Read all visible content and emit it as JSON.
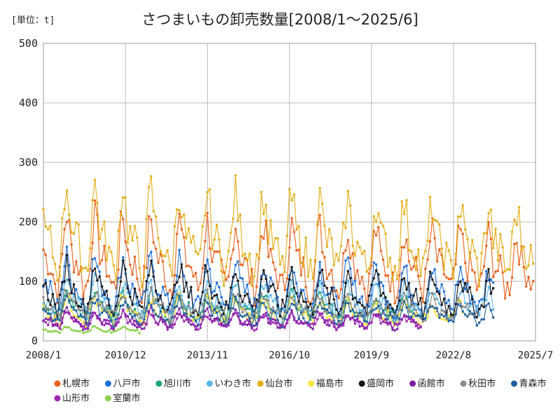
{
  "chart_data": {
    "type": "line",
    "title": "さつまいもの卸売数量[2008/1～2025/6]",
    "unit_label": "[単位：t]",
    "xlabel": "",
    "ylabel": "",
    "ylim": [
      0,
      500
    ],
    "y_ticks": [
      "0",
      "100",
      "200",
      "300",
      "400",
      "500"
    ],
    "x_ticks": [
      "2008/1",
      "2010/12",
      "2013/11",
      "2016/10",
      "2019/9",
      "2022/8",
      "2025/7"
    ],
    "x_range_months": [
      "2008/1",
      "2025/7"
    ],
    "grid": true,
    "legend_position": "bottom",
    "series": [
      {
        "name": "札幌市",
        "color": "#e8601c",
        "base": 150,
        "amp": 130,
        "start": "2008/1",
        "end": "2025/6"
      },
      {
        "name": "八戸市",
        "color": "#1f6fd8",
        "base": 95,
        "amp": 90,
        "start": "2008/1",
        "end": "2024/1"
      },
      {
        "name": "旭川市",
        "color": "#1aa37a",
        "base": 70,
        "amp": 45,
        "start": "2008/1",
        "end": "2021/3"
      },
      {
        "name": "いわき市",
        "color": "#5ab8e8",
        "base": 75,
        "amp": 60,
        "start": "2008/1",
        "end": "2024/1"
      },
      {
        "name": "仙台市",
        "color": "#e3ad16",
        "base": 205,
        "amp": 150,
        "start": "2008/1",
        "end": "2025/6"
      },
      {
        "name": "福島市",
        "color": "#f6e33a",
        "base": 55,
        "amp": 45,
        "start": "2008/1",
        "end": "2022/12"
      },
      {
        "name": "盛岡市",
        "color": "#111111",
        "base": 85,
        "amp": 85,
        "start": "2008/1",
        "end": "2024/1"
      },
      {
        "name": "函館市",
        "color": "#7b1fa2",
        "base": 40,
        "amp": 30,
        "start": "2008/1",
        "end": "2021/6"
      },
      {
        "name": "秋田市",
        "color": "#8a8a8a",
        "base": 70,
        "amp": 45,
        "start": "2008/1",
        "end": "2023/6"
      },
      {
        "name": "青森市",
        "color": "#1e5f9e",
        "base": 55,
        "amp": 40,
        "start": "2008/1",
        "end": "2024/1"
      },
      {
        "name": "山形市",
        "color": "#9c27b0",
        "base": 40,
        "amp": 25,
        "start": "2008/1",
        "end": "2021/6"
      },
      {
        "name": "室蘭市",
        "color": "#8fd14f",
        "base": 25,
        "amp": 10,
        "start": "2008/1",
        "end": "2011/6"
      }
    ]
  }
}
